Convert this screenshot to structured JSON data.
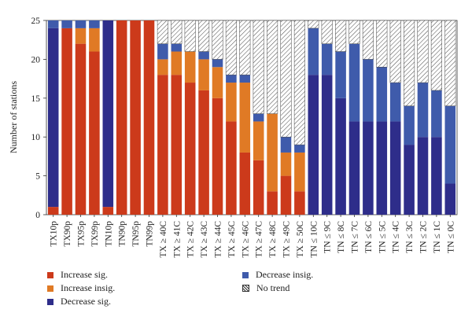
{
  "chart_data": {
    "type": "bar",
    "stacked": true,
    "ylabel": "Number of stations",
    "ylim": [
      0,
      25
    ],
    "yticks": [
      0,
      5,
      10,
      15,
      20,
      25
    ],
    "categories": [
      "TX10p",
      "TX90p",
      "TX95p",
      "TX99p",
      "TN10p",
      "TN90p",
      "TN95p",
      "TN99p",
      "TX ≥ 40C",
      "TX ≥ 41C",
      "TX ≥ 42C",
      "TX ≥ 43C",
      "TX ≥ 44C",
      "TX ≥ 45C",
      "TX ≥ 46C",
      "TX ≥ 47C",
      "TX ≥ 48C",
      "TX ≥ 49C",
      "TX ≥ 50C",
      "TN ≤ 10C",
      "TN ≤ 9C",
      "TN ≤ 8C",
      "TN ≤ 7C",
      "TN ≤ 6C",
      "TN ≤ 5C",
      "TN ≤ 4C",
      "TN ≤ 3C",
      "TN ≤ 2C",
      "TN ≤ 1C",
      "TN ≤ 0C"
    ],
    "series": [
      {
        "name": "Increase sig.",
        "color": "#cc3a1b",
        "pattern": false,
        "values": [
          1,
          24,
          22,
          21,
          1,
          25,
          25,
          25,
          18,
          18,
          17,
          16,
          15,
          12,
          8,
          7,
          3,
          5,
          3,
          0,
          0,
          0,
          0,
          0,
          0,
          0,
          0,
          0,
          0,
          0
        ]
      },
      {
        "name": "Increase insig.",
        "color": "#e07a25",
        "pattern": false,
        "values": [
          0,
          0,
          2,
          3,
          0,
          0,
          0,
          0,
          2,
          3,
          4,
          4,
          4,
          5,
          9,
          5,
          10,
          3,
          5,
          0,
          0,
          0,
          0,
          0,
          0,
          0,
          0,
          0,
          0,
          0
        ]
      },
      {
        "name": "Decrease sig.",
        "color": "#2e2d8a",
        "pattern": false,
        "values": [
          23,
          0,
          0,
          0,
          24,
          0,
          0,
          0,
          0,
          0,
          0,
          0,
          0,
          0,
          0,
          0,
          0,
          0,
          0,
          18,
          18,
          15,
          12,
          12,
          12,
          12,
          9,
          10,
          10,
          4
        ]
      },
      {
        "name": "Decrease insig.",
        "color": "#3f5bab",
        "pattern": false,
        "values": [
          1,
          1,
          1,
          1,
          0,
          0,
          0,
          0,
          2,
          1,
          0,
          1,
          1,
          1,
          1,
          1,
          0,
          2,
          1,
          6,
          4,
          6,
          10,
          8,
          7,
          5,
          5,
          7,
          6,
          10
        ]
      },
      {
        "name": "No trend",
        "color": "#ffffff",
        "pattern": true,
        "values": [
          0,
          0,
          0,
          0,
          0,
          0,
          0,
          0,
          3,
          3,
          4,
          4,
          5,
          7,
          7,
          12,
          12,
          15,
          16,
          1,
          3,
          4,
          3,
          5,
          6,
          8,
          11,
          8,
          9,
          11
        ]
      }
    ],
    "legend": {
      "position": "bottom",
      "left": [
        {
          "label": "Increase sig.",
          "color": "#cc3a1b",
          "pattern": false
        },
        {
          "label": "Increase insig.",
          "color": "#e07a25",
          "pattern": false
        },
        {
          "label": "Decrease sig.",
          "color": "#2e2d8a",
          "pattern": false
        }
      ],
      "right": [
        {
          "label": "Decrease insig.",
          "color": "#3f5bab",
          "pattern": false
        },
        {
          "label": "No trend",
          "color": "#ffffff",
          "pattern": true
        }
      ]
    }
  }
}
